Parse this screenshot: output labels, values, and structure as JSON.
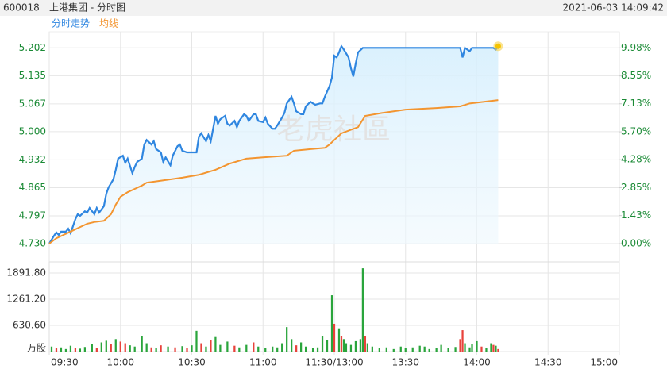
{
  "code": "600018",
  "header": "上港集团 - 分时图",
  "timestamp": "2021-06-03 14:09:42",
  "watermark": "老虎社區",
  "chart_data": [
    {
      "type": "line",
      "xlim": [
        0,
        240
      ],
      "xticks": [
        {
          "value": 0,
          "label": "09:30"
        },
        {
          "value": 30,
          "label": "10:00"
        },
        {
          "value": 60,
          "label": "10:30"
        },
        {
          "value": 90,
          "label": "11:00"
        },
        {
          "value": 120,
          "label": "11:30/13:00"
        },
        {
          "value": 150,
          "label": "13:30"
        },
        {
          "value": 180,
          "label": "14:00"
        },
        {
          "value": 210,
          "label": "14:30"
        },
        {
          "value": 240,
          "label": "15:00"
        }
      ],
      "ylim": [
        4.73,
        5.237
      ],
      "yticks": [
        {
          "value": 4.73,
          "label": "4.730"
        },
        4.797,
        4.865,
        4.932,
        {
          "value": 5.0,
          "label": "5.000"
        },
        5.067,
        5.135,
        5.202
      ],
      "y2lim": [
        0,
        10.72
      ],
      "y2ticks": [
        {
          "value": 0,
          "label": "0.00%"
        },
        {
          "value": 1.43,
          "label": "1.43%"
        },
        {
          "value": 2.85,
          "label": "2.85%"
        },
        {
          "value": 4.28,
          "label": "4.28%"
        },
        {
          "value": 5.7,
          "label": "5.70%"
        },
        {
          "value": 7.13,
          "label": "7.13%"
        },
        {
          "value": 8.55,
          "label": "8.55%"
        },
        {
          "value": 9.98,
          "label": "9.98%"
        }
      ],
      "grid": true,
      "series": [
        {
          "name": "分时走势",
          "color": "#2f86e0",
          "x": [
            0,
            2,
            3,
            4,
            5,
            7,
            8,
            9,
            11,
            12,
            13,
            15,
            16,
            17,
            19,
            20,
            21,
            23,
            24,
            25,
            27,
            28,
            29,
            31,
            32,
            33,
            35,
            36,
            37,
            39,
            40,
            41,
            43,
            44,
            45,
            47,
            48,
            49,
            51,
            52,
            54,
            55,
            56,
            58,
            60,
            62,
            63,
            64,
            66,
            67,
            68,
            70,
            71,
            72,
            74,
            75,
            76,
            78,
            79,
            80,
            82,
            83,
            84,
            86,
            87,
            88,
            90,
            91,
            92,
            94,
            95,
            96,
            98,
            99,
            100,
            102,
            103,
            104,
            106,
            107,
            108,
            110,
            111,
            112,
            114,
            115,
            116,
            118,
            119,
            120,
            121,
            122,
            123,
            124,
            126,
            127,
            128,
            129,
            130,
            132,
            173,
            174,
            175,
            177,
            178,
            187,
            188,
            189
          ],
          "values": [
            4.73,
            4.749,
            4.757,
            4.751,
            4.759,
            4.759,
            4.766,
            4.755,
            4.789,
            4.801,
            4.797,
            4.808,
            4.805,
            4.816,
            4.801,
            4.816,
            4.805,
            4.82,
            4.85,
            4.866,
            4.885,
            4.908,
            4.935,
            4.942,
            4.925,
            4.935,
            4.9,
            4.915,
            4.927,
            4.935,
            4.969,
            4.98,
            4.969,
            4.977,
            4.958,
            4.95,
            4.927,
            4.938,
            4.919,
            4.942,
            4.965,
            4.969,
            4.954,
            4.95,
            4.95,
            4.95,
            4.988,
            4.996,
            4.977,
            4.992,
            4.977,
            5.038,
            5.019,
            5.03,
            5.038,
            5.019,
            5.015,
            5.026,
            5.011,
            5.026,
            5.042,
            5.038,
            5.026,
            5.042,
            5.042,
            5.026,
            5.023,
            5.034,
            5.019,
            5.007,
            5.007,
            5.015,
            5.034,
            5.045,
            5.068,
            5.084,
            5.068,
            5.049,
            5.042,
            5.042,
            5.061,
            5.072,
            5.068,
            5.065,
            5.068,
            5.068,
            5.084,
            5.11,
            5.13,
            5.183,
            5.179,
            5.191,
            5.206,
            5.198,
            5.179,
            5.153,
            5.133,
            5.164,
            5.191,
            5.202,
            5.202,
            5.179,
            5.202,
            5.194,
            5.202,
            5.202,
            5.198,
            5.206
          ]
        },
        {
          "name": "均线",
          "color": "#f39530",
          "x": [
            0,
            3,
            6,
            9,
            13,
            16,
            19,
            23,
            26,
            28,
            30,
            33,
            36,
            39,
            41,
            46,
            56,
            63,
            70,
            76,
            83,
            90,
            100,
            103,
            110,
            116,
            118,
            120,
            123,
            130,
            133,
            140,
            150,
            163,
            173,
            177,
            183,
            189
          ],
          "values": [
            4.73,
            4.743,
            4.751,
            4.759,
            4.77,
            4.778,
            4.782,
            4.785,
            4.801,
            4.824,
            4.843,
            4.854,
            4.862,
            4.87,
            4.877,
            4.881,
            4.889,
            4.896,
            4.908,
            4.923,
            4.935,
            4.938,
            4.942,
            4.954,
            4.958,
            4.961,
            4.969,
            4.98,
            4.996,
            5.011,
            5.038,
            5.045,
            5.053,
            5.057,
            5.061,
            5.068,
            5.072,
            5.076
          ]
        }
      ]
    },
    {
      "type": "volume",
      "xlim": [
        0,
        240
      ],
      "ylim": [
        0,
        2160
      ],
      "yticks": [
        {
          "value": 0,
          "label": "万股"
        },
        {
          "value": 630.6,
          "label": "630.60"
        },
        {
          "value": 1261.2,
          "label": "1261.20"
        },
        {
          "value": 1891.8,
          "label": "1891.80"
        }
      ],
      "x": [
        1,
        3,
        5,
        7,
        9,
        11,
        13,
        15,
        18,
        20,
        22,
        24,
        26,
        28,
        30,
        32,
        34,
        36,
        39,
        41,
        43,
        45,
        47,
        50,
        53,
        56,
        58,
        60,
        62,
        64,
        66,
        68,
        70,
        72,
        75,
        78,
        80,
        83,
        86,
        88,
        91,
        94,
        96,
        98,
        100,
        102,
        104,
        106,
        108,
        111,
        113,
        115,
        117,
        119,
        120,
        122,
        123,
        124,
        125,
        127,
        129,
        131,
        132,
        133,
        134,
        136,
        139,
        142,
        145,
        148,
        150,
        153,
        156,
        158,
        160,
        163,
        165,
        168,
        171,
        173,
        174,
        175,
        177,
        178,
        180,
        182,
        184,
        186,
        187,
        188,
        189
      ],
      "values": [
        120,
        80,
        100,
        60,
        140,
        90,
        70,
        110,
        180,
        90,
        220,
        260,
        180,
        300,
        240,
        200,
        150,
        120,
        380,
        200,
        100,
        80,
        150,
        120,
        100,
        130,
        80,
        150,
        500,
        200,
        120,
        280,
        350,
        160,
        240,
        140,
        100,
        160,
        220,
        120,
        80,
        120,
        100,
        200,
        590,
        300,
        150,
        220,
        120,
        90,
        100,
        380,
        280,
        1356,
        670,
        560,
        380,
        300,
        200,
        160,
        250,
        300,
        2005,
        380,
        200,
        120,
        80,
        100,
        60,
        120,
        90,
        100,
        140,
        120,
        60,
        90,
        160,
        80,
        110,
        300,
        515,
        200,
        100,
        180,
        250,
        120,
        80,
        200,
        160,
        140,
        60
      ],
      "colors": [
        "#2aa53c",
        "#e8423b",
        "#2aa53c",
        "#2aa53c",
        "#2aa53c",
        "#e8423b",
        "#2aa53c",
        "#2aa53c",
        "#2aa53c",
        "#e8423b",
        "#2aa53c",
        "#2aa53c",
        "#e8423b",
        "#2aa53c",
        "#e8423b",
        "#e8423b",
        "#2aa53c",
        "#2aa53c",
        "#2aa53c",
        "#2aa53c",
        "#e8423b",
        "#2aa53c",
        "#e8423b",
        "#2aa53c",
        "#e8423b",
        "#2aa53c",
        "#e8423b",
        "#2aa53c",
        "#2aa53c",
        "#e8423b",
        "#2aa53c",
        "#e8423b",
        "#2aa53c",
        "#2aa53c",
        "#2aa53c",
        "#e8423b",
        "#2aa53c",
        "#2aa53c",
        "#e8423b",
        "#2aa53c",
        "#2aa53c",
        "#2aa53c",
        "#2aa53c",
        "#2aa53c",
        "#2aa53c",
        "#2aa53c",
        "#e8423b",
        "#2aa53c",
        "#2aa53c",
        "#2aa53c",
        "#2aa53c",
        "#2aa53c",
        "#2aa53c",
        "#2aa53c",
        "#e8423b",
        "#2aa53c",
        "#e8423b",
        "#2aa53c",
        "#2aa53c",
        "#2aa53c",
        "#2aa53c",
        "#2aa53c",
        "#2aa53c",
        "#e8423b",
        "#2aa53c",
        "#2aa53c",
        "#2aa53c",
        "#2aa53c",
        "#2aa53c",
        "#2aa53c",
        "#2aa53c",
        "#2aa53c",
        "#2aa53c",
        "#2aa53c",
        "#2aa53c",
        "#2aa53c",
        "#2aa53c",
        "#2aa53c",
        "#2aa53c",
        "#e8423b",
        "#e8423b",
        "#2aa53c",
        "#2aa53c",
        "#2aa53c",
        "#2aa53c",
        "#e8423b",
        "#2aa53c",
        "#2aa53c",
        "#e8423b",
        "#2aa53c",
        "#e8423b"
      ]
    }
  ]
}
